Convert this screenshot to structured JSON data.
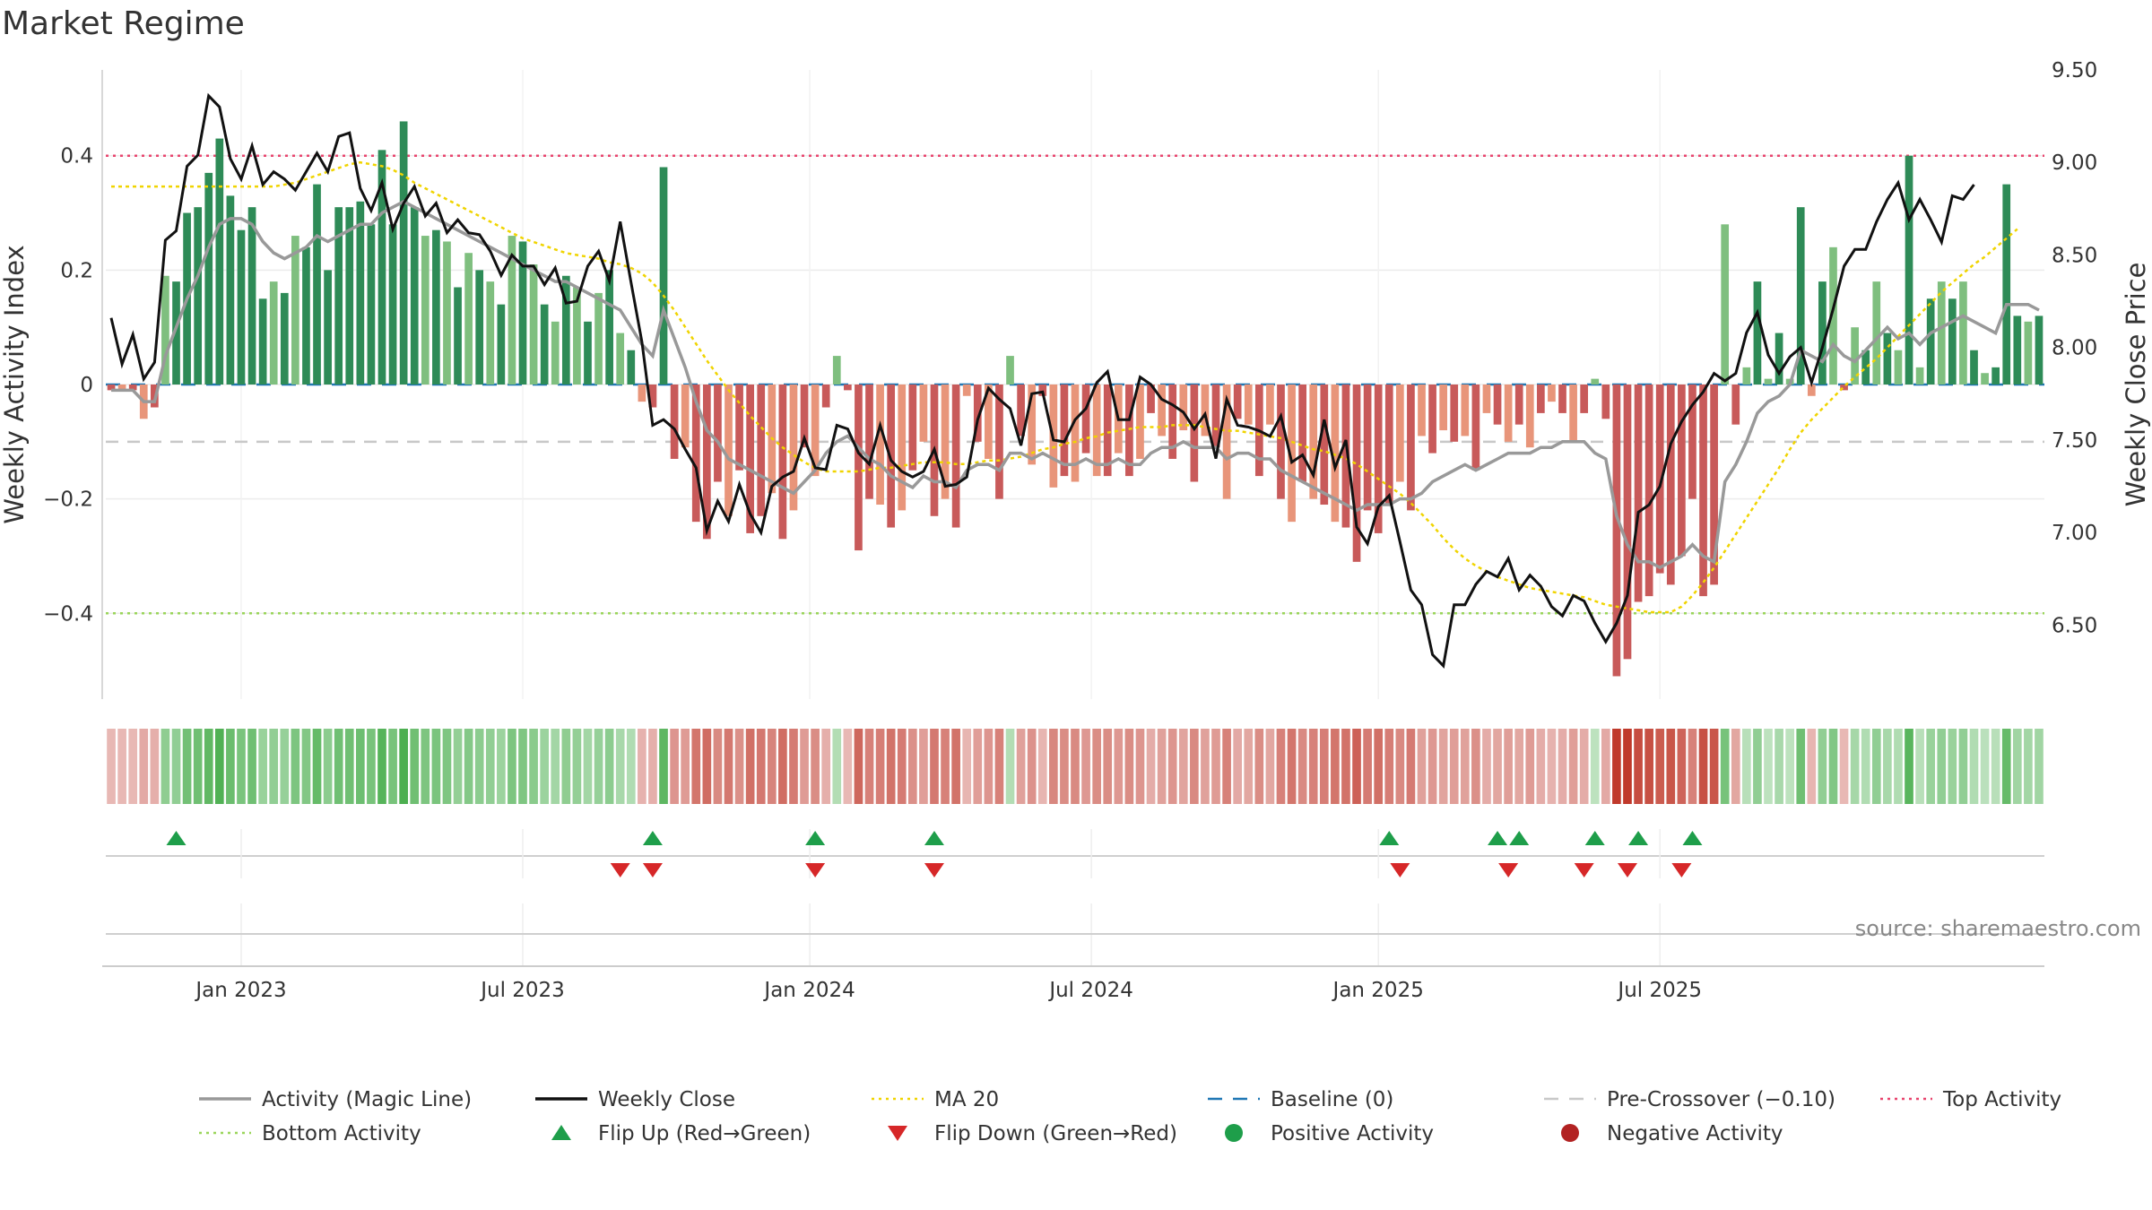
{
  "chart_data": {
    "type": "bar",
    "title": "Market Regime",
    "ylabel": "Weekly Activity Index",
    "y2label": "Weekly Close Price",
    "source": "source: sharemaestro.com",
    "ylim": [
      -0.55,
      0.55
    ],
    "y2lim": [
      6.1,
      9.5
    ],
    "yticks": [
      -0.4,
      -0.2,
      0,
      0.2,
      0.4
    ],
    "ytick_labels": [
      "−0.4",
      "−0.2",
      "0",
      "0.2",
      "0.4"
    ],
    "y2ticks": [
      6.5,
      7.0,
      7.5,
      8.0,
      8.5,
      9.0,
      9.5
    ],
    "y2tick_labels": [
      "6.50",
      "7.00",
      "7.50",
      "8.00",
      "8.50",
      "9.00",
      "9.50"
    ],
    "x_labels": [
      "Jan 2023",
      "Jul 2023",
      "Jan 2024",
      "Jul 2024",
      "Jan 2025",
      "Jul 2025"
    ],
    "x_label_week_index": [
      12,
      38,
      64.5,
      90.5,
      117,
      143
    ],
    "grid": true,
    "levels": {
      "top": 0.4,
      "bottom": -0.4,
      "pre_crossover": -0.1,
      "baseline": 0
    },
    "activity": [
      -0.01,
      -0.01,
      -0.01,
      -0.06,
      -0.04,
      0.19,
      0.18,
      0.3,
      0.31,
      0.37,
      0.43,
      0.33,
      0.27,
      0.31,
      0.15,
      0.18,
      0.16,
      0.26,
      0.24,
      0.35,
      0.2,
      0.31,
      0.31,
      0.32,
      0.28,
      0.41,
      0.28,
      0.46,
      0.31,
      0.26,
      0.27,
      0.25,
      0.17,
      0.23,
      0.2,
      0.18,
      0.14,
      0.26,
      0.25,
      0.21,
      0.14,
      0.11,
      0.19,
      0.17,
      0.11,
      0.16,
      0.2,
      0.09,
      0.06,
      -0.03,
      -0.04,
      0.38,
      -0.13,
      -0.11,
      -0.24,
      -0.27,
      -0.17,
      -0.23,
      -0.15,
      -0.26,
      -0.23,
      -0.19,
      -0.27,
      -0.22,
      -0.11,
      -0.16,
      -0.04,
      0.05,
      -0.01,
      -0.29,
      -0.2,
      -0.21,
      -0.25,
      -0.22,
      -0.15,
      -0.1,
      -0.23,
      -0.2,
      -0.25,
      -0.02,
      -0.1,
      -0.13,
      -0.2,
      0.05,
      -0.09,
      -0.14,
      -0.02,
      -0.18,
      -0.16,
      -0.17,
      -0.12,
      -0.16,
      -0.16,
      -0.12,
      -0.16,
      -0.13,
      -0.05,
      -0.09,
      -0.13,
      -0.08,
      -0.17,
      -0.09,
      -0.11,
      -0.2,
      -0.06,
      -0.07,
      -0.16,
      -0.07,
      -0.2,
      -0.24,
      -0.17,
      -0.2,
      -0.21,
      -0.24,
      -0.25,
      -0.31,
      -0.22,
      -0.26,
      -0.21,
      -0.17,
      -0.22,
      -0.09,
      -0.12,
      -0.08,
      -0.1,
      -0.09,
      -0.15,
      -0.05,
      -0.07,
      -0.1,
      -0.07,
      -0.11,
      -0.05,
      -0.03,
      -0.05,
      -0.1,
      -0.05,
      0.01,
      -0.06,
      -0.51,
      -0.48,
      -0.38,
      -0.37,
      -0.33,
      -0.35,
      -0.3,
      -0.2,
      -0.37,
      -0.35,
      0.28,
      -0.07,
      0.03,
      0.18,
      0.01,
      0.09,
      0.01,
      0.31,
      -0.02,
      0.18,
      0.24,
      -0.01,
      0.1,
      0.06,
      0.18,
      0.09,
      0.06,
      0.4,
      0.03,
      0.15,
      0.18,
      0.15,
      0.18,
      0.06,
      0.02,
      0.03,
      0.35,
      0.12,
      0.11,
      0.12
    ],
    "magic_line": [
      -0.01,
      -0.01,
      -0.01,
      -0.03,
      -0.03,
      0.05,
      0.1,
      0.15,
      0.19,
      0.24,
      0.28,
      0.29,
      0.29,
      0.28,
      0.25,
      0.23,
      0.22,
      0.23,
      0.24,
      0.26,
      0.25,
      0.26,
      0.27,
      0.28,
      0.28,
      0.3,
      0.31,
      0.32,
      0.31,
      0.3,
      0.29,
      0.28,
      0.27,
      0.26,
      0.25,
      0.24,
      0.23,
      0.22,
      0.21,
      0.2,
      0.19,
      0.18,
      0.18,
      0.17,
      0.16,
      0.15,
      0.14,
      0.13,
      0.1,
      0.07,
      0.05,
      0.13,
      0.08,
      0.03,
      -0.03,
      -0.08,
      -0.1,
      -0.13,
      -0.14,
      -0.15,
      -0.16,
      -0.17,
      -0.18,
      -0.19,
      -0.17,
      -0.15,
      -0.12,
      -0.1,
      -0.09,
      -0.11,
      -0.13,
      -0.14,
      -0.16,
      -0.17,
      -0.18,
      -0.16,
      -0.17,
      -0.17,
      -0.18,
      -0.15,
      -0.14,
      -0.14,
      -0.15,
      -0.12,
      -0.12,
      -0.13,
      -0.12,
      -0.13,
      -0.14,
      -0.14,
      -0.13,
      -0.14,
      -0.14,
      -0.13,
      -0.14,
      -0.14,
      -0.12,
      -0.11,
      -0.11,
      -0.1,
      -0.11,
      -0.11,
      -0.11,
      -0.13,
      -0.12,
      -0.12,
      -0.13,
      -0.13,
      -0.15,
      -0.16,
      -0.17,
      -0.18,
      -0.19,
      -0.2,
      -0.21,
      -0.22,
      -0.21,
      -0.21,
      -0.21,
      -0.2,
      -0.2,
      -0.19,
      -0.17,
      -0.16,
      -0.15,
      -0.14,
      -0.15,
      -0.14,
      -0.13,
      -0.12,
      -0.12,
      -0.12,
      -0.11,
      -0.11,
      -0.1,
      -0.1,
      -0.1,
      -0.12,
      -0.13,
      -0.23,
      -0.28,
      -0.31,
      -0.31,
      -0.32,
      -0.31,
      -0.3,
      -0.28,
      -0.3,
      -0.31,
      -0.17,
      -0.14,
      -0.1,
      -0.05,
      -0.03,
      -0.02,
      0.0,
      0.06,
      0.05,
      0.04,
      0.07,
      0.05,
      0.04,
      0.06,
      0.08,
      0.1,
      0.08,
      0.09,
      0.07,
      0.09,
      0.1,
      0.11,
      0.12,
      0.11,
      0.1,
      0.09,
      0.14,
      0.14,
      0.14,
      0.13
    ],
    "weekly_close": [
      8.16,
      7.91,
      8.07,
      7.83,
      7.92,
      8.58,
      8.63,
      8.98,
      9.04,
      9.36,
      9.3,
      9.02,
      8.91,
      9.09,
      8.88,
      8.95,
      8.91,
      8.85,
      8.95,
      9.05,
      8.95,
      9.14,
      9.16,
      8.86,
      8.74,
      8.89,
      8.64,
      8.78,
      8.87,
      8.71,
      8.78,
      8.62,
      8.69,
      8.62,
      8.61,
      8.52,
      8.39,
      8.5,
      8.44,
      8.44,
      8.34,
      8.43,
      8.24,
      8.25,
      8.44,
      8.52,
      8.36,
      8.68,
      8.35,
      8.03,
      7.58,
      7.61,
      7.56,
      7.45,
      7.35,
      7.01,
      7.17,
      7.06,
      7.26,
      7.1,
      7.0,
      7.25,
      7.3,
      7.33,
      7.51,
      7.35,
      7.34,
      7.58,
      7.56,
      7.43,
      7.37,
      7.58,
      7.39,
      7.33,
      7.3,
      7.33,
      7.45,
      7.25,
      7.26,
      7.3,
      7.61,
      7.78,
      7.72,
      7.67,
      7.47,
      7.75,
      7.76,
      7.5,
      7.49,
      7.61,
      7.67,
      7.81,
      7.87,
      7.61,
      7.61,
      7.84,
      7.8,
      7.72,
      7.69,
      7.65,
      7.56,
      7.64,
      7.4,
      7.72,
      7.58,
      7.57,
      7.55,
      7.52,
      7.63,
      7.38,
      7.42,
      7.31,
      7.61,
      7.35,
      7.5,
      7.03,
      6.94,
      7.14,
      7.2,
      6.95,
      6.69,
      6.61,
      6.34,
      6.28,
      6.61,
      6.61,
      6.72,
      6.79,
      6.76,
      6.86,
      6.69,
      6.77,
      6.71,
      6.6,
      6.55,
      6.66,
      6.63,
      6.51,
      6.41,
      6.51,
      6.66,
      7.11,
      7.15,
      7.25,
      7.48,
      7.6,
      7.69,
      7.76,
      7.86,
      7.82,
      7.86,
      8.08,
      8.19,
      7.96,
      7.86,
      7.95,
      8.0,
      7.81,
      8.0,
      8.21,
      8.44,
      8.53,
      8.53,
      8.68,
      8.8,
      8.89,
      8.69,
      8.8,
      8.69,
      8.57,
      8.82,
      8.8,
      8.88
    ],
    "ma20": [
      8.87,
      8.87,
      8.87,
      8.87,
      8.87,
      8.87,
      8.87,
      8.87,
      8.87,
      8.87,
      8.87,
      8.87,
      8.87,
      8.87,
      8.87,
      8.87,
      8.88,
      8.89,
      8.91,
      8.93,
      8.95,
      8.97,
      8.99,
      9.0,
      8.99,
      8.98,
      8.96,
      8.93,
      8.89,
      8.86,
      8.83,
      8.8,
      8.77,
      8.74,
      8.71,
      8.68,
      8.65,
      8.62,
      8.59,
      8.57,
      8.55,
      8.53,
      8.51,
      8.5,
      8.49,
      8.48,
      8.46,
      8.45,
      8.43,
      8.4,
      8.35,
      8.28,
      8.2,
      8.11,
      8.02,
      7.93,
      7.85,
      7.77,
      7.7,
      7.63,
      7.57,
      7.51,
      7.46,
      7.42,
      7.38,
      7.35,
      7.33,
      7.33,
      7.33,
      7.33,
      7.34,
      7.35,
      7.35,
      7.36,
      7.37,
      7.38,
      7.38,
      7.38,
      7.37,
      7.37,
      7.38,
      7.39,
      7.39,
      7.4,
      7.41,
      7.43,
      7.45,
      7.46,
      7.48,
      7.49,
      7.51,
      7.52,
      7.54,
      7.55,
      7.56,
      7.57,
      7.57,
      7.57,
      7.58,
      7.58,
      7.58,
      7.57,
      7.56,
      7.55,
      7.55,
      7.54,
      7.53,
      7.52,
      7.51,
      7.49,
      7.47,
      7.45,
      7.44,
      7.42,
      7.4,
      7.37,
      7.33,
      7.29,
      7.25,
      7.21,
      7.16,
      7.1,
      7.04,
      6.97,
      6.91,
      6.86,
      6.82,
      6.79,
      6.76,
      6.74,
      6.72,
      6.7,
      6.69,
      6.68,
      6.67,
      6.66,
      6.65,
      6.63,
      6.61,
      6.6,
      6.59,
      6.58,
      6.57,
      6.57,
      6.57,
      6.6,
      6.66,
      6.73,
      6.81,
      6.9,
      6.99,
      7.08,
      7.17,
      7.26,
      7.35,
      7.45,
      7.54,
      7.61,
      7.67,
      7.73,
      7.79,
      7.84,
      7.89,
      7.94,
      8.0,
      8.06,
      8.12,
      8.18,
      8.24,
      8.3,
      8.35,
      8.4,
      8.45,
      8.49,
      8.54,
      8.59,
      8.64
    ],
    "flip_up_weeks": [
      6,
      50,
      65,
      76,
      118,
      128,
      130,
      137,
      141,
      146
    ],
    "flip_down_weeks": [
      47,
      50,
      65,
      76,
      119,
      129,
      136,
      140,
      145
    ],
    "legend": [
      {
        "label": "Activity (Magic Line)",
        "marker": "line",
        "color": "#999999"
      },
      {
        "label": "Weekly Close",
        "marker": "line",
        "color": "#111111"
      },
      {
        "label": "MA 20",
        "marker": "dotted",
        "color": "#f0d400"
      },
      {
        "label": "Baseline (0)",
        "marker": "dashed",
        "color": "#1f77b4"
      },
      {
        "label": "Pre-Crossover (−0.10)",
        "marker": "dashed",
        "color": "#c8c8c8"
      },
      {
        "label": "Top Activity",
        "marker": "dotted",
        "color": "#e8446e"
      },
      {
        "label": "Bottom Activity",
        "marker": "dotted",
        "color": "#9ad55a"
      },
      {
        "label": "Flip Up (Red→Green)",
        "marker": "triangle-up",
        "color": "#1e9e4a"
      },
      {
        "label": "Flip Down (Green→Red)",
        "marker": "triangle-down",
        "color": "#d62728"
      },
      {
        "label": "Positive Activity",
        "marker": "circle",
        "color": "#1e9e4a"
      },
      {
        "label": "Negative Activity",
        "marker": "circle",
        "color": "#b22222"
      }
    ],
    "legend_position": "bottom",
    "colors": {
      "pos_strong": "#2e8b57",
      "pos_light": "#7fbf7f",
      "neg_strong": "#c85a5a",
      "neg_light": "#e8957a"
    }
  }
}
